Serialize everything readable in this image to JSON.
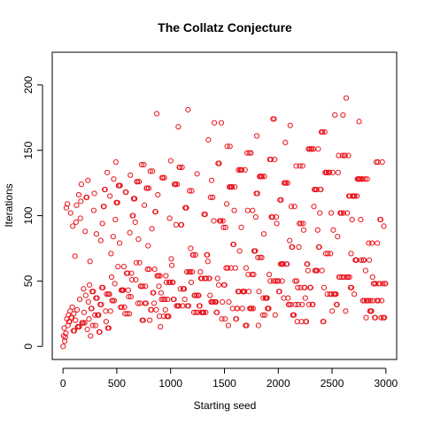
{
  "chart_data": {
    "type": "scatter",
    "title": "The Collatz Conjecture",
    "xlabel": "Starting seed",
    "ylabel": "Iterations",
    "xlim": [
      -100,
      3100
    ],
    "ylim": [
      -10,
      225
    ],
    "xticks": [
      0,
      500,
      1000,
      1500,
      2000,
      2500,
      3000
    ],
    "yticks": [
      0,
      50,
      100,
      150,
      200
    ],
    "grid": false,
    "marker": "open-circle",
    "marker_color": "#e8141b",
    "series": [
      {
        "x_start": 1,
        "x_end": 3000,
        "x_step": 5,
        "values_rule": "Collatz stopping time (number of 3n+1 / n/2 steps to reach 1) of each starting seed"
      }
    ]
  }
}
